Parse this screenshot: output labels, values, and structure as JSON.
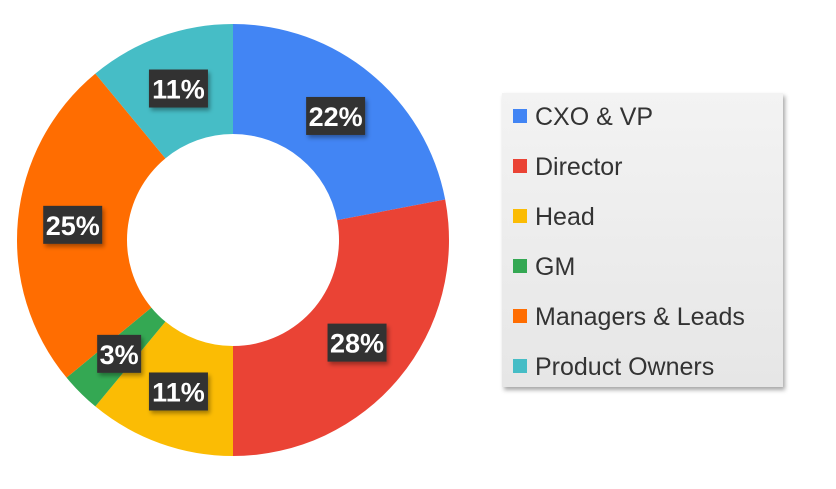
{
  "chart_data": {
    "type": "pie",
    "donut": true,
    "categories": [
      "CXO & VP",
      "Director",
      "Head",
      "GM",
      "Managers & Leads",
      "Product Owners"
    ],
    "values": [
      22,
      28,
      11,
      3,
      25,
      11
    ],
    "labels": [
      "22%",
      "28%",
      "11%",
      "3%",
      "25%",
      "11%"
    ],
    "colors": [
      "#4285F4",
      "#EA4335",
      "#FBBC04",
      "#34A853",
      "#FF6D01",
      "#46BDC6"
    ],
    "legend_position": "right",
    "data_label_style": {
      "background": "#333333",
      "text_color": "#ffffff"
    },
    "title": ""
  }
}
